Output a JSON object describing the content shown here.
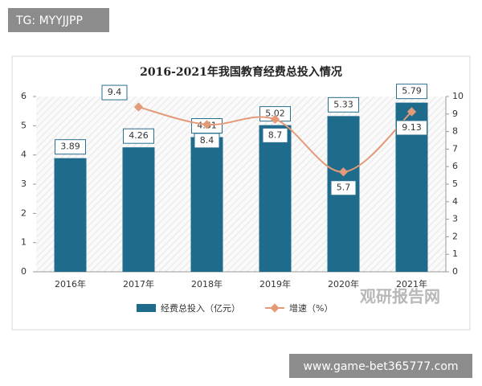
{
  "labels": {
    "top_tag": "TG: MYYJJPP",
    "bottom_url": "www.game-bet365777.com",
    "watermark": "观研报告网"
  },
  "chart_data": {
    "type": "bar-line",
    "title": "2016-2021年我国教育经费总投入情况",
    "categories": [
      "2016年",
      "2017年",
      "2018年",
      "2019年",
      "2020年",
      "2021年"
    ],
    "series": [
      {
        "name": "经费总投入（亿元）",
        "color": "#1f6b8c",
        "type": "bar",
        "values": [
          3.89,
          4.26,
          4.61,
          5.02,
          5.33,
          5.79
        ]
      },
      {
        "name": "增速（%）",
        "color": "#e39a78",
        "type": "line",
        "axis": "y2",
        "values": [
          null,
          9.4,
          8.4,
          8.7,
          5.7,
          9.13
        ]
      }
    ],
    "ylim": [
      0,
      6
    ],
    "yticks": [
      0,
      1,
      2,
      3,
      4,
      5,
      6
    ],
    "y2lim": [
      0,
      10
    ],
    "y2ticks": [
      0,
      1,
      2,
      3,
      4,
      5,
      6,
      7,
      8,
      9,
      10
    ],
    "legend": "bottom"
  }
}
